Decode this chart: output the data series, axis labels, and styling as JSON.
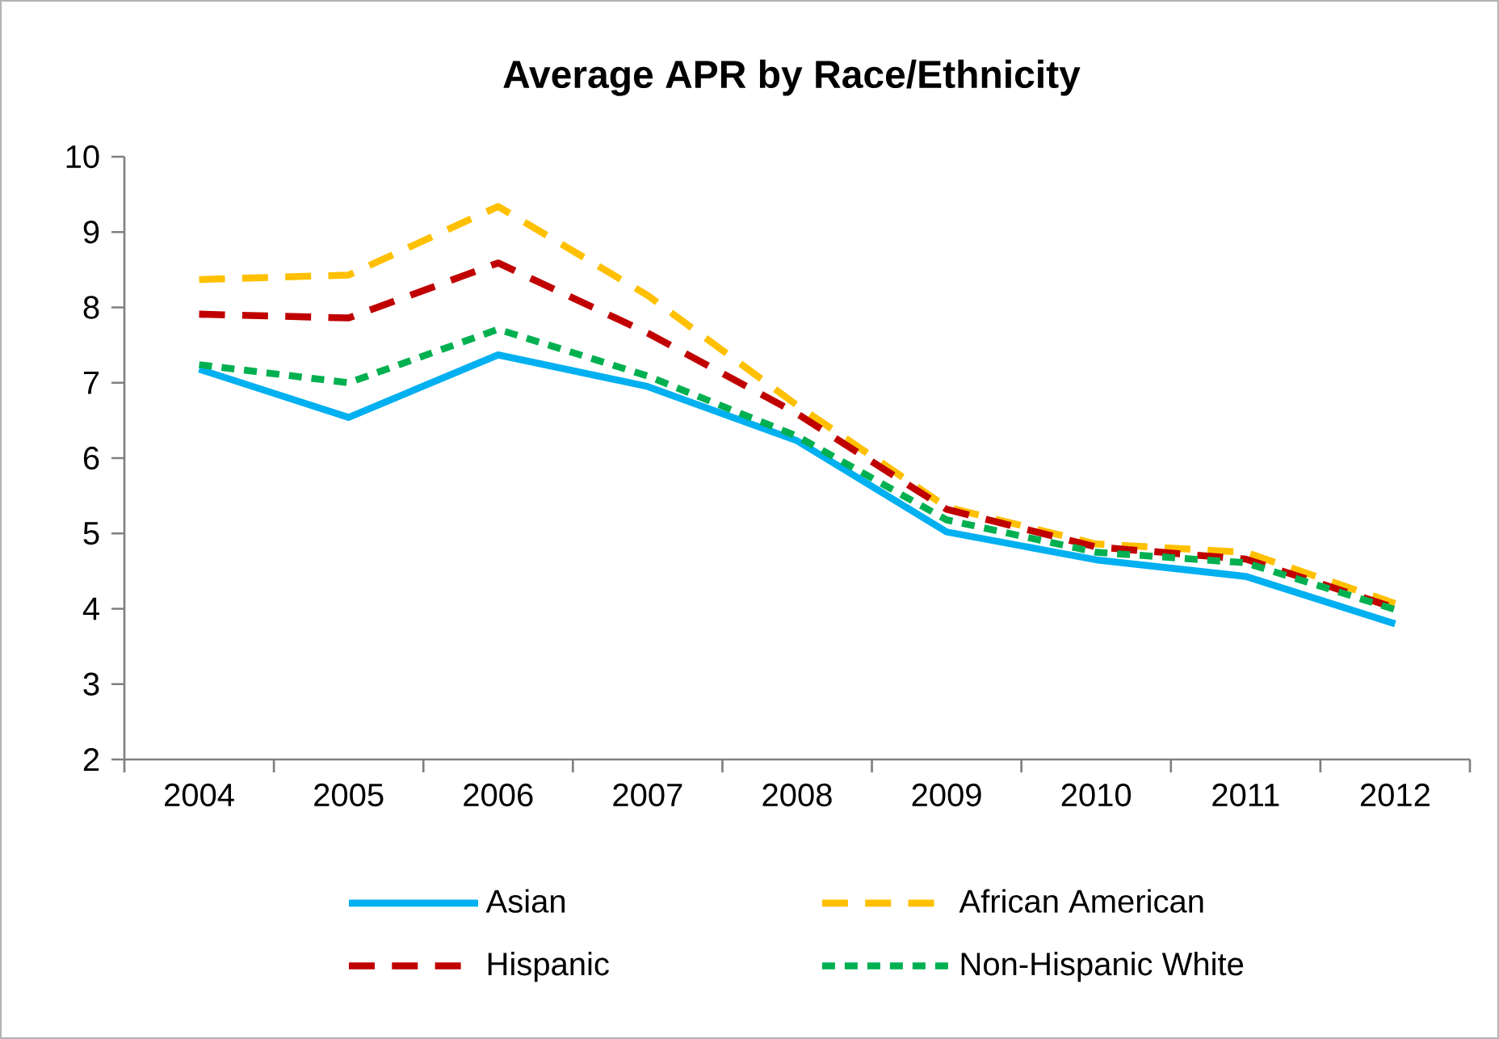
{
  "chart_data": {
    "type": "line",
    "title": "Average APR by Race/Ethnicity",
    "categories": [
      "2004",
      "2005",
      "2006",
      "2007",
      "2008",
      "2009",
      "2010",
      "2011",
      "2012"
    ],
    "series": [
      {
        "name": "Asian",
        "color": "#00b0f0",
        "line_style": "solid",
        "values": [
          7.18,
          6.54,
          7.37,
          6.95,
          6.23,
          5.02,
          4.65,
          4.43,
          3.8
        ]
      },
      {
        "name": "African American",
        "color": "#ffc000",
        "line_style": "dashed",
        "values": [
          8.37,
          8.43,
          9.34,
          8.16,
          6.7,
          5.35,
          4.86,
          4.75,
          4.07
        ]
      },
      {
        "name": "Hispanic",
        "color": "#c00000",
        "line_style": "dashed",
        "values": [
          7.91,
          7.86,
          8.59,
          7.66,
          6.59,
          5.32,
          4.82,
          4.66,
          4.01
        ]
      },
      {
        "name": "Non-Hispanic White",
        "color": "#00b050",
        "line_style": "dotted",
        "values": [
          7.24,
          7.0,
          7.71,
          7.09,
          6.29,
          5.18,
          4.75,
          4.61,
          3.99
        ]
      }
    ],
    "ylim": [
      2,
      10
    ],
    "yticks": [
      2,
      3,
      4,
      5,
      6,
      7,
      8,
      9,
      10
    ],
    "grid": false,
    "legend": "bottom",
    "marker": "none"
  }
}
